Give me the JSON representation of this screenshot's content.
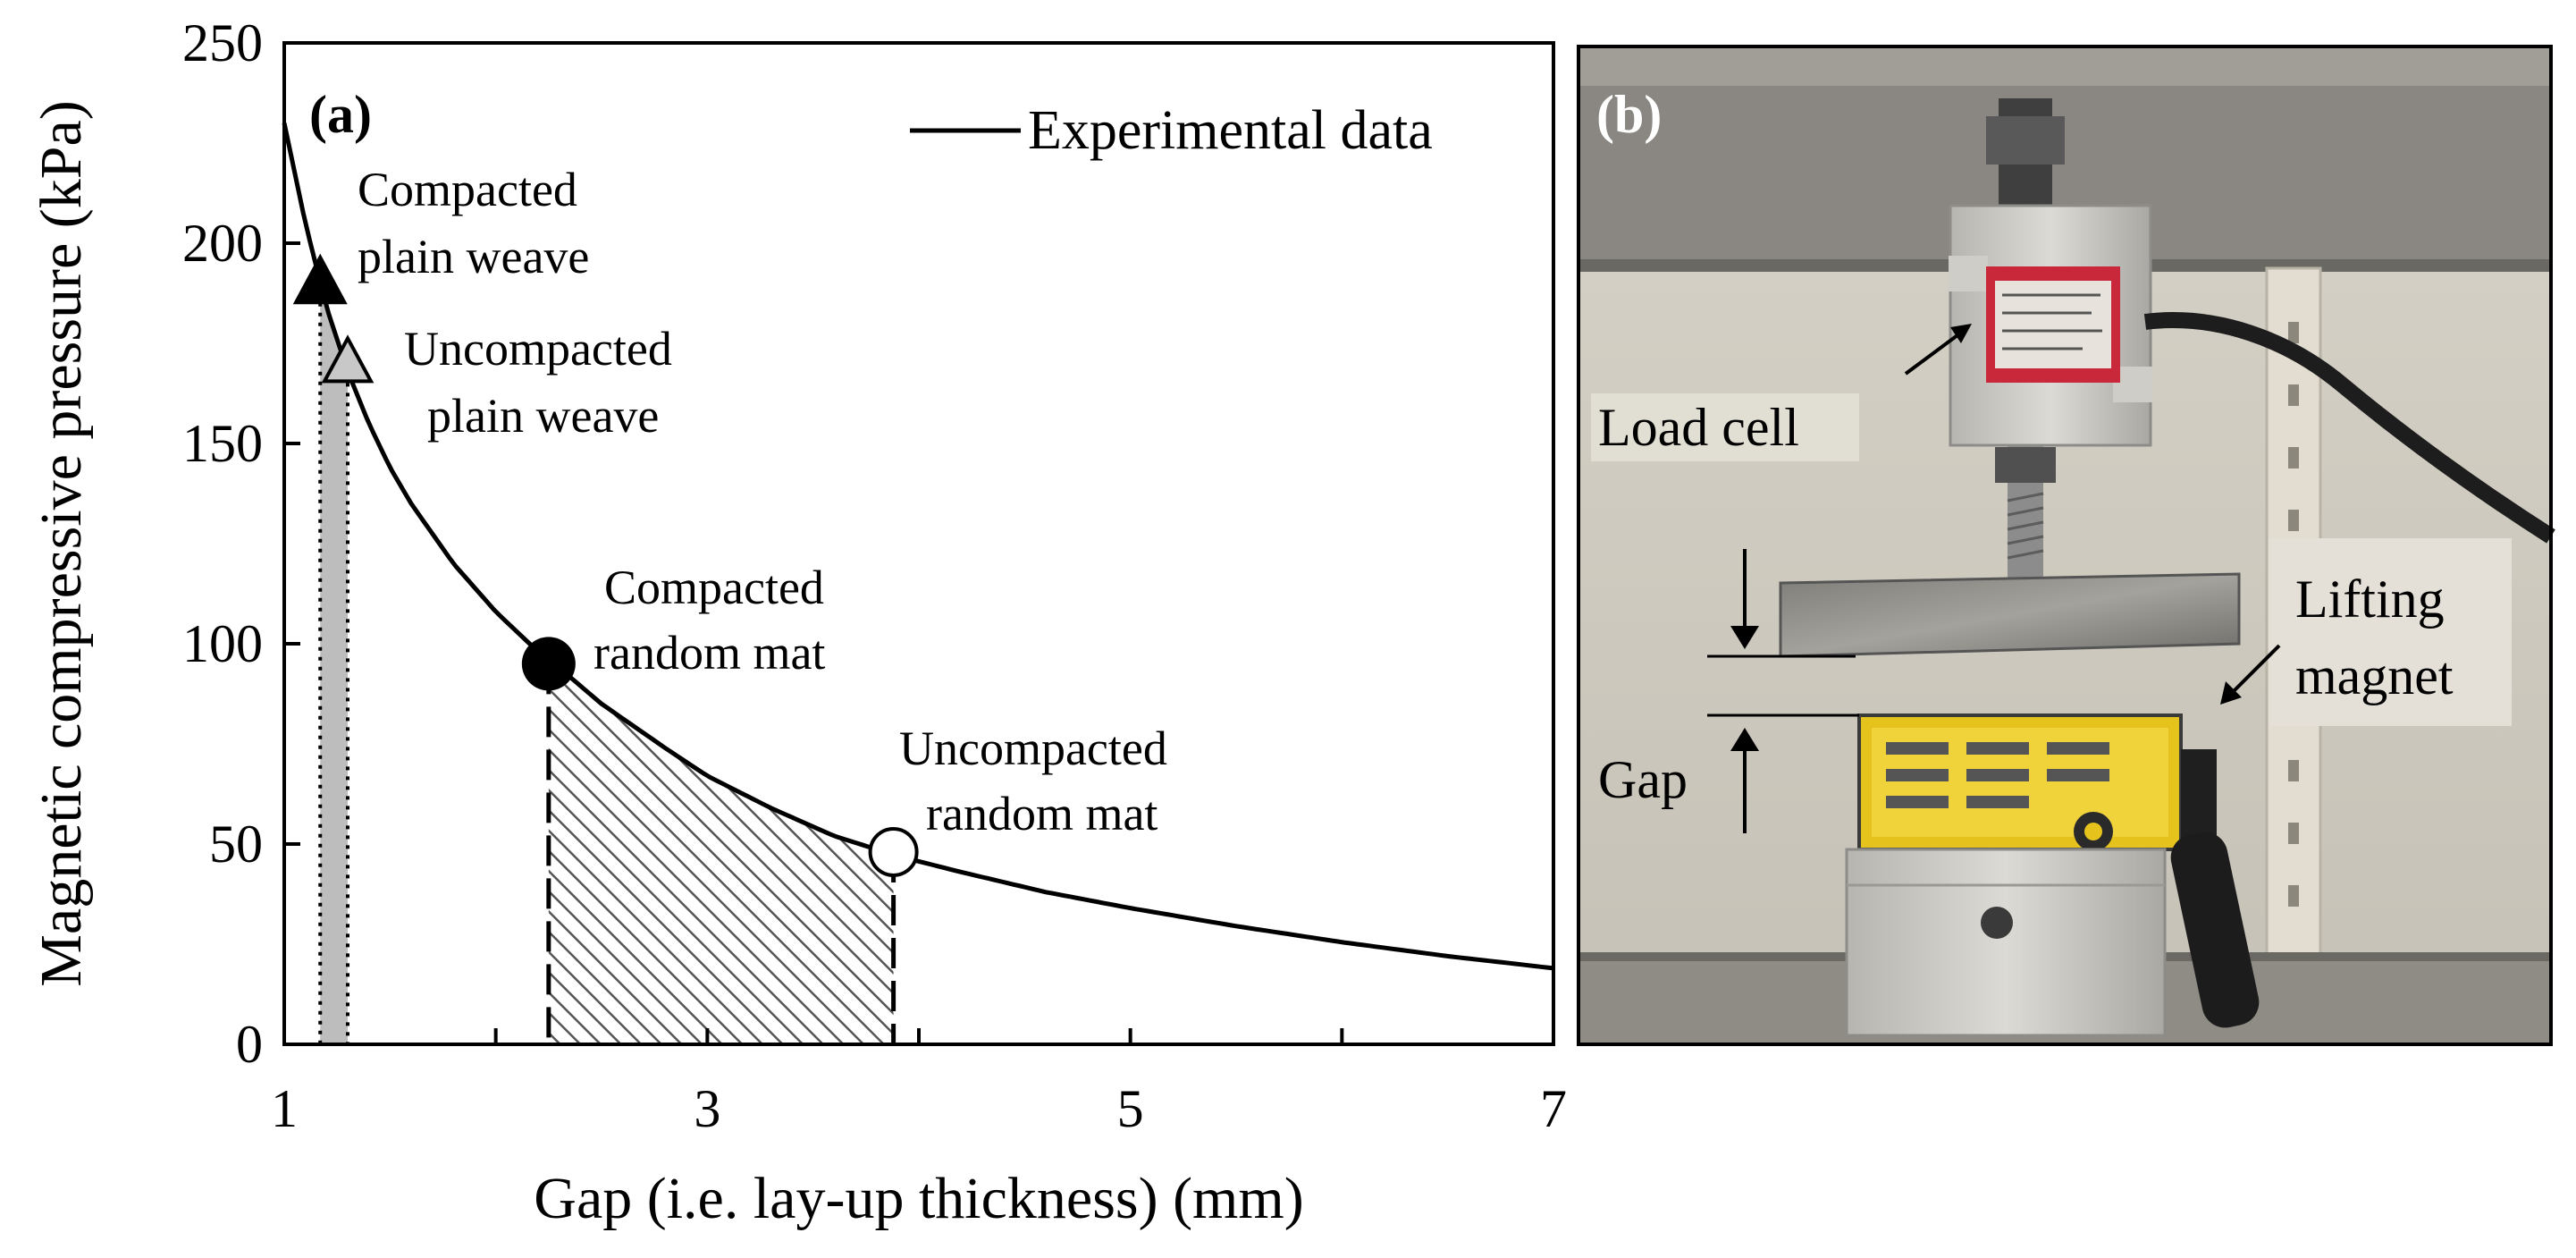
{
  "chart_data": {
    "type": "line",
    "panel_label": "(a)",
    "xlabel": "Gap (i.e. lay-up thickness) (mm)",
    "ylabel": "Magnetic compressive pressure (kPa)",
    "xlim": [
      1,
      7
    ],
    "ylim": [
      0,
      250
    ],
    "xticks": [
      1,
      3,
      5,
      7
    ],
    "yticks": [
      0,
      50,
      100,
      150,
      200,
      250
    ],
    "legend": {
      "label": "Experimental data",
      "position": "top-right"
    },
    "series": [
      {
        "name": "Experimental data",
        "x": [
          1.0,
          1.1,
          1.2,
          1.3,
          1.4,
          1.5,
          1.6,
          1.8,
          2.0,
          2.2,
          2.3,
          2.5,
          2.8,
          3.0,
          3.3,
          3.6,
          3.9,
          4.2,
          4.6,
          5.0,
          5.5,
          6.0,
          6.5,
          7.0
        ],
        "y": [
          230,
          205,
          184,
          168,
          155,
          144,
          135,
          120,
          108,
          98,
          94,
          85,
          74,
          67,
          59,
          52,
          47,
          43,
          38,
          34,
          29.5,
          25.5,
          22,
          19
        ]
      }
    ],
    "points": [
      {
        "name": "Compacted plain weave",
        "label_lines": [
          "Compacted",
          "plain weave"
        ],
        "x": 1.17,
        "y": 190,
        "marker": "triangle-filled"
      },
      {
        "name": "Uncompacted plain weave",
        "label_lines": [
          "Uncompacted",
          "plain weave"
        ],
        "x": 1.3,
        "y": 170,
        "marker": "triangle-open-gray"
      },
      {
        "name": "Compacted random mat",
        "label_lines": [
          "Compacted",
          "random mat"
        ],
        "x": 2.25,
        "y": 95,
        "marker": "circle-filled"
      },
      {
        "name": "Uncompacted random mat",
        "label_lines": [
          "Uncompacted",
          "random mat"
        ],
        "x": 3.88,
        "y": 48,
        "marker": "circle-open"
      }
    ],
    "regions": [
      {
        "name": "plain weave range",
        "x_from": 1.17,
        "x_to": 1.3,
        "fill": "gray"
      },
      {
        "name": "random mat range",
        "x_from": 2.25,
        "x_to": 3.88,
        "fill": "hatched"
      }
    ]
  },
  "photo_panel": {
    "panel_label": "(b)",
    "labels": {
      "load_cell": "Load cell",
      "gap": "Gap",
      "lifting_magnet_line1": "Lifting",
      "lifting_magnet_line2": "magnet"
    }
  },
  "colors": {
    "curve": "#000000",
    "plain_weave_fill": "#bdbdbd",
    "magnet_yellow": "#e6c21c",
    "load_cell_red": "#c8283a",
    "aluminum": "#c9c7c3"
  }
}
